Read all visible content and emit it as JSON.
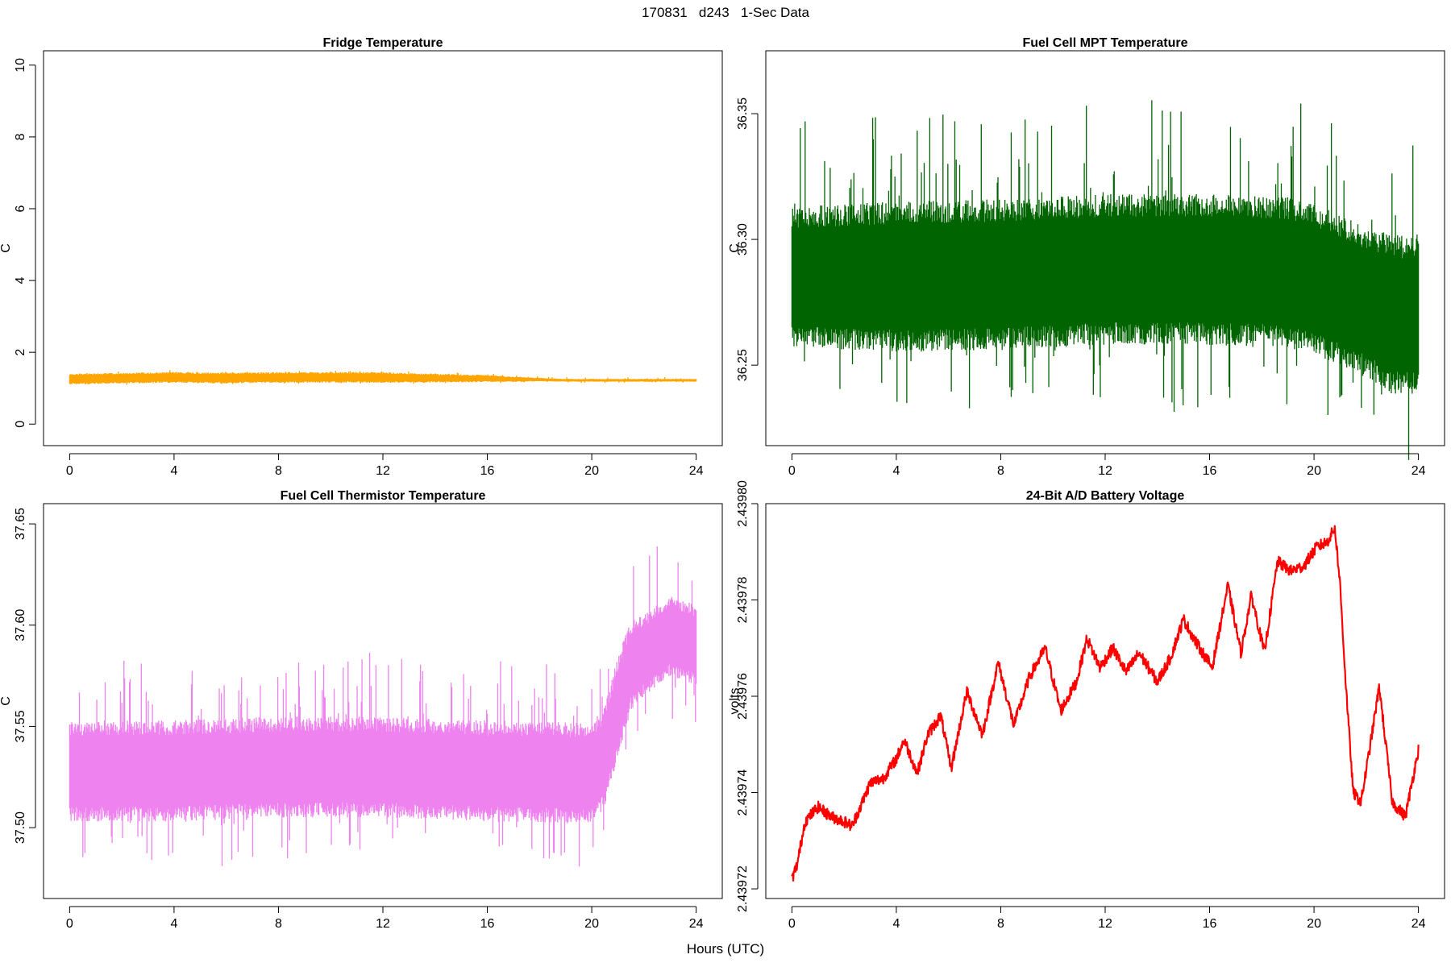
{
  "figure_title": "170831   d243   1-Sec Data",
  "shared_xlabel": "Hours (UTC)",
  "chart_data": [
    {
      "type": "line",
      "title": "Fridge Temperature",
      "xlabel": "",
      "ylabel": "C",
      "xlim": [
        -1,
        25
      ],
      "ylim": [
        -0.6,
        10.4
      ],
      "x_ticks": [
        0,
        4,
        8,
        12,
        16,
        20,
        24
      ],
      "y_ticks": [
        0,
        2,
        4,
        6,
        8,
        10
      ],
      "y_tick_labels": [
        "0",
        "2",
        "4",
        "6",
        "8",
        "10"
      ],
      "color": "#FFA500",
      "style": "dense_noise",
      "series": [
        {
          "x": [
            0,
            2,
            4,
            6,
            8,
            10,
            12,
            14,
            16,
            17,
            18,
            19,
            20,
            22,
            24
          ],
          "center": [
            1.25,
            1.28,
            1.3,
            1.28,
            1.3,
            1.3,
            1.3,
            1.28,
            1.27,
            1.25,
            1.24,
            1.22,
            1.22,
            1.22,
            1.22
          ],
          "halfwidth": [
            0.15,
            0.15,
            0.15,
            0.15,
            0.15,
            0.15,
            0.15,
            0.12,
            0.1,
            0.07,
            0.05,
            0.04,
            0.04,
            0.04,
            0.04
          ],
          "spike": 0.06
        }
      ]
    },
    {
      "type": "line",
      "title": "Fuel Cell MPT Temperature",
      "xlabel": "",
      "ylabel": "C",
      "xlim": [
        -1,
        25
      ],
      "ylim": [
        36.218,
        36.375
      ],
      "x_ticks": [
        0,
        4,
        8,
        12,
        16,
        20,
        24
      ],
      "y_ticks": [
        36.25,
        36.3,
        36.35
      ],
      "y_tick_labels": [
        "36.25",
        "36.30",
        "36.35"
      ],
      "color": "#006400",
      "style": "dense_noise",
      "series": [
        {
          "x": [
            0,
            4,
            8,
            12,
            16,
            19,
            20,
            21,
            22,
            23,
            24
          ],
          "center": [
            36.285,
            36.285,
            36.286,
            36.288,
            36.288,
            36.287,
            36.284,
            36.28,
            36.275,
            36.27,
            36.27
          ],
          "halfwidth": [
            0.028,
            0.03,
            0.03,
            0.03,
            0.03,
            0.03,
            0.03,
            0.03,
            0.03,
            0.032,
            0.032
          ],
          "spike": 0.04
        }
      ]
    },
    {
      "type": "line",
      "title": "Fuel Cell Thermistor Temperature",
      "xlabel": "",
      "ylabel": "C",
      "xlim": [
        -1,
        25
      ],
      "ylim": [
        37.465,
        37.66
      ],
      "x_ticks": [
        0,
        4,
        8,
        12,
        16,
        20,
        24
      ],
      "y_ticks": [
        37.5,
        37.55,
        37.6,
        37.65
      ],
      "y_tick_labels": [
        "37.50",
        "37.55",
        "37.60",
        "37.65"
      ],
      "color": "#EE82EE",
      "style": "dense_noise",
      "series": [
        {
          "x": [
            0,
            4,
            8,
            12,
            16,
            19,
            20,
            20.5,
            21,
            21.5,
            22,
            23,
            24
          ],
          "center": [
            37.528,
            37.528,
            37.53,
            37.53,
            37.528,
            37.527,
            37.527,
            37.535,
            37.56,
            37.58,
            37.585,
            37.595,
            37.59
          ],
          "halfwidth": [
            0.025,
            0.025,
            0.025,
            0.025,
            0.025,
            0.025,
            0.025,
            0.025,
            0.025,
            0.022,
            0.02,
            0.02,
            0.02
          ],
          "spike": 0.035
        }
      ]
    },
    {
      "type": "line",
      "title": "24-Bit A/D Battery Voltage",
      "xlabel": "",
      "ylabel": "volts",
      "xlim": [
        -1,
        25
      ],
      "ylim": [
        2.439718,
        2.4398
      ],
      "x_ticks": [
        0,
        4,
        8,
        12,
        16,
        20,
        24
      ],
      "y_ticks": [
        2.43972,
        2.43974,
        2.43976,
        2.43978,
        2.4398
      ],
      "y_tick_labels": [
        "2.43972",
        "2.43974",
        "2.43976",
        "2.43978",
        "2.43980"
      ],
      "color": "#FF0000",
      "style": "thick_line",
      "series": [
        {
          "x": [
            0,
            0.2,
            0.5,
            1,
            1.5,
            2,
            2.3,
            2.7,
            3,
            3.5,
            4,
            4.3,
            4.8,
            5.2,
            5.7,
            6.1,
            6.7,
            7.3,
            7.9,
            8.5,
            9.1,
            9.7,
            10.3,
            10.9,
            11.3,
            11.8,
            12.3,
            12.8,
            13.3,
            14,
            14.5,
            15,
            15.5,
            16.1,
            16.7,
            17.2,
            17.6,
            18.1,
            18.6,
            19.1,
            19.6,
            20.1,
            20.5,
            20.8,
            21,
            21.2,
            21.5,
            21.8,
            22.1,
            22.5,
            23,
            23.5,
            24
          ],
          "y": [
            2.439722,
            2.439725,
            2.439734,
            2.439737,
            2.439735,
            2.439734,
            2.439733,
            2.439738,
            2.439742,
            2.439743,
            2.439747,
            2.439751,
            2.439744,
            2.439752,
            2.439756,
            2.439745,
            2.439761,
            2.439752,
            2.439767,
            2.439754,
            2.439764,
            2.43977,
            2.439757,
            2.439763,
            2.439772,
            2.439766,
            2.43977,
            2.439765,
            2.439769,
            2.439763,
            2.439768,
            2.439776,
            2.439771,
            2.439766,
            2.439783,
            2.439769,
            2.439781,
            2.439769,
            2.439788,
            2.439786,
            2.439787,
            2.439791,
            2.439792,
            2.439795,
            2.439783,
            2.439764,
            2.43974,
            2.439738,
            2.439748,
            2.439762,
            2.439738,
            2.439735,
            2.439749
          ],
          "noise": 1.2e-06
        }
      ]
    }
  ]
}
